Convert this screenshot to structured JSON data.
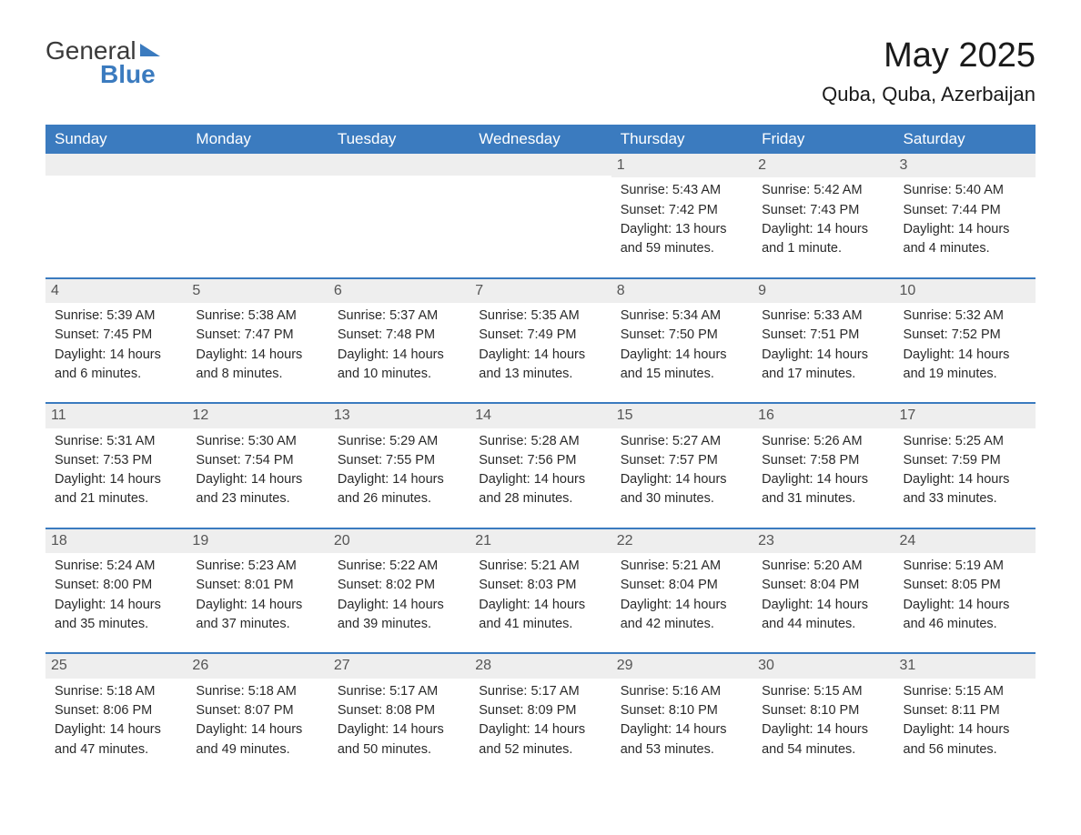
{
  "logo": {
    "text1": "General",
    "text2": "Blue"
  },
  "title": "May 2025",
  "location": "Quba, Quba, Azerbaijan",
  "colors": {
    "header_bg": "#3b7bbf",
    "header_text": "#ffffff",
    "day_number_bg": "#eeeeee",
    "day_number_text": "#555555",
    "body_text": "#2a2a2a",
    "title_text": "#1a1a1a",
    "border": "#3b7bbf"
  },
  "day_headers": [
    "Sunday",
    "Monday",
    "Tuesday",
    "Wednesday",
    "Thursday",
    "Friday",
    "Saturday"
  ],
  "weeks": [
    [
      null,
      null,
      null,
      null,
      {
        "num": "1",
        "sunrise": "Sunrise: 5:43 AM",
        "sunset": "Sunset: 7:42 PM",
        "daylight1": "Daylight: 13 hours",
        "daylight2": "and 59 minutes."
      },
      {
        "num": "2",
        "sunrise": "Sunrise: 5:42 AM",
        "sunset": "Sunset: 7:43 PM",
        "daylight1": "Daylight: 14 hours",
        "daylight2": "and 1 minute."
      },
      {
        "num": "3",
        "sunrise": "Sunrise: 5:40 AM",
        "sunset": "Sunset: 7:44 PM",
        "daylight1": "Daylight: 14 hours",
        "daylight2": "and 4 minutes."
      }
    ],
    [
      {
        "num": "4",
        "sunrise": "Sunrise: 5:39 AM",
        "sunset": "Sunset: 7:45 PM",
        "daylight1": "Daylight: 14 hours",
        "daylight2": "and 6 minutes."
      },
      {
        "num": "5",
        "sunrise": "Sunrise: 5:38 AM",
        "sunset": "Sunset: 7:47 PM",
        "daylight1": "Daylight: 14 hours",
        "daylight2": "and 8 minutes."
      },
      {
        "num": "6",
        "sunrise": "Sunrise: 5:37 AM",
        "sunset": "Sunset: 7:48 PM",
        "daylight1": "Daylight: 14 hours",
        "daylight2": "and 10 minutes."
      },
      {
        "num": "7",
        "sunrise": "Sunrise: 5:35 AM",
        "sunset": "Sunset: 7:49 PM",
        "daylight1": "Daylight: 14 hours",
        "daylight2": "and 13 minutes."
      },
      {
        "num": "8",
        "sunrise": "Sunrise: 5:34 AM",
        "sunset": "Sunset: 7:50 PM",
        "daylight1": "Daylight: 14 hours",
        "daylight2": "and 15 minutes."
      },
      {
        "num": "9",
        "sunrise": "Sunrise: 5:33 AM",
        "sunset": "Sunset: 7:51 PM",
        "daylight1": "Daylight: 14 hours",
        "daylight2": "and 17 minutes."
      },
      {
        "num": "10",
        "sunrise": "Sunrise: 5:32 AM",
        "sunset": "Sunset: 7:52 PM",
        "daylight1": "Daylight: 14 hours",
        "daylight2": "and 19 minutes."
      }
    ],
    [
      {
        "num": "11",
        "sunrise": "Sunrise: 5:31 AM",
        "sunset": "Sunset: 7:53 PM",
        "daylight1": "Daylight: 14 hours",
        "daylight2": "and 21 minutes."
      },
      {
        "num": "12",
        "sunrise": "Sunrise: 5:30 AM",
        "sunset": "Sunset: 7:54 PM",
        "daylight1": "Daylight: 14 hours",
        "daylight2": "and 23 minutes."
      },
      {
        "num": "13",
        "sunrise": "Sunrise: 5:29 AM",
        "sunset": "Sunset: 7:55 PM",
        "daylight1": "Daylight: 14 hours",
        "daylight2": "and 26 minutes."
      },
      {
        "num": "14",
        "sunrise": "Sunrise: 5:28 AM",
        "sunset": "Sunset: 7:56 PM",
        "daylight1": "Daylight: 14 hours",
        "daylight2": "and 28 minutes."
      },
      {
        "num": "15",
        "sunrise": "Sunrise: 5:27 AM",
        "sunset": "Sunset: 7:57 PM",
        "daylight1": "Daylight: 14 hours",
        "daylight2": "and 30 minutes."
      },
      {
        "num": "16",
        "sunrise": "Sunrise: 5:26 AM",
        "sunset": "Sunset: 7:58 PM",
        "daylight1": "Daylight: 14 hours",
        "daylight2": "and 31 minutes."
      },
      {
        "num": "17",
        "sunrise": "Sunrise: 5:25 AM",
        "sunset": "Sunset: 7:59 PM",
        "daylight1": "Daylight: 14 hours",
        "daylight2": "and 33 minutes."
      }
    ],
    [
      {
        "num": "18",
        "sunrise": "Sunrise: 5:24 AM",
        "sunset": "Sunset: 8:00 PM",
        "daylight1": "Daylight: 14 hours",
        "daylight2": "and 35 minutes."
      },
      {
        "num": "19",
        "sunrise": "Sunrise: 5:23 AM",
        "sunset": "Sunset: 8:01 PM",
        "daylight1": "Daylight: 14 hours",
        "daylight2": "and 37 minutes."
      },
      {
        "num": "20",
        "sunrise": "Sunrise: 5:22 AM",
        "sunset": "Sunset: 8:02 PM",
        "daylight1": "Daylight: 14 hours",
        "daylight2": "and 39 minutes."
      },
      {
        "num": "21",
        "sunrise": "Sunrise: 5:21 AM",
        "sunset": "Sunset: 8:03 PM",
        "daylight1": "Daylight: 14 hours",
        "daylight2": "and 41 minutes."
      },
      {
        "num": "22",
        "sunrise": "Sunrise: 5:21 AM",
        "sunset": "Sunset: 8:04 PM",
        "daylight1": "Daylight: 14 hours",
        "daylight2": "and 42 minutes."
      },
      {
        "num": "23",
        "sunrise": "Sunrise: 5:20 AM",
        "sunset": "Sunset: 8:04 PM",
        "daylight1": "Daylight: 14 hours",
        "daylight2": "and 44 minutes."
      },
      {
        "num": "24",
        "sunrise": "Sunrise: 5:19 AM",
        "sunset": "Sunset: 8:05 PM",
        "daylight1": "Daylight: 14 hours",
        "daylight2": "and 46 minutes."
      }
    ],
    [
      {
        "num": "25",
        "sunrise": "Sunrise: 5:18 AM",
        "sunset": "Sunset: 8:06 PM",
        "daylight1": "Daylight: 14 hours",
        "daylight2": "and 47 minutes."
      },
      {
        "num": "26",
        "sunrise": "Sunrise: 5:18 AM",
        "sunset": "Sunset: 8:07 PM",
        "daylight1": "Daylight: 14 hours",
        "daylight2": "and 49 minutes."
      },
      {
        "num": "27",
        "sunrise": "Sunrise: 5:17 AM",
        "sunset": "Sunset: 8:08 PM",
        "daylight1": "Daylight: 14 hours",
        "daylight2": "and 50 minutes."
      },
      {
        "num": "28",
        "sunrise": "Sunrise: 5:17 AM",
        "sunset": "Sunset: 8:09 PM",
        "daylight1": "Daylight: 14 hours",
        "daylight2": "and 52 minutes."
      },
      {
        "num": "29",
        "sunrise": "Sunrise: 5:16 AM",
        "sunset": "Sunset: 8:10 PM",
        "daylight1": "Daylight: 14 hours",
        "daylight2": "and 53 minutes."
      },
      {
        "num": "30",
        "sunrise": "Sunrise: 5:15 AM",
        "sunset": "Sunset: 8:10 PM",
        "daylight1": "Daylight: 14 hours",
        "daylight2": "and 54 minutes."
      },
      {
        "num": "31",
        "sunrise": "Sunrise: 5:15 AM",
        "sunset": "Sunset: 8:11 PM",
        "daylight1": "Daylight: 14 hours",
        "daylight2": "and 56 minutes."
      }
    ]
  ]
}
